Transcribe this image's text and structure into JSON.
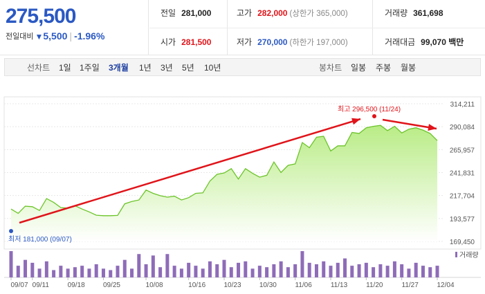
{
  "quote": {
    "price": "275,500",
    "change_label": "전일대비",
    "change_arrow": "▼",
    "change_value": "5,500",
    "change_sep": "|",
    "change_percent": "-1.96%"
  },
  "stats": {
    "prev_label": "전일",
    "prev_value": "281,000",
    "high_label": "고가",
    "high_value": "282,000",
    "upper_limit": "(상한가 365,000)",
    "volume_label": "거래량",
    "volume_value": "361,698",
    "open_label": "시가",
    "open_value": "281,500",
    "low_label": "저가",
    "low_value": "270,000",
    "lower_limit": "(하한가 197,000)",
    "amount_label": "거래대금",
    "amount_value": "99,070 백만"
  },
  "tabs": {
    "line_chart_label": "선차트",
    "periods": [
      "1일",
      "1주일",
      "3개월",
      "1년",
      "3년",
      "5년",
      "10년"
    ],
    "active_period": "3개월",
    "candle_label": "봉차트",
    "candles": [
      "일봉",
      "주봉",
      "월봉"
    ]
  },
  "colors": {
    "rise": "#e0141a",
    "fall": "#2b59c3",
    "area_line": "#6cc42a",
    "area_fill": "#c9f0a4",
    "volume_bar": "#8e6cb8"
  },
  "chart_data": {
    "type": "area",
    "ylim": [
      169450,
      314211
    ],
    "y_ticks": [
      "314,211",
      "290,084",
      "265,957",
      "241,831",
      "217,704",
      "193,577",
      "169,450"
    ],
    "y_tick_values": [
      314211,
      290084,
      265957,
      241831,
      217704,
      193577,
      169450
    ],
    "x_tick_labels": [
      "09/07",
      "09/11",
      "09/18",
      "09/25",
      "10/08",
      "10/16",
      "10/23",
      "10/30",
      "11/06",
      "11/13",
      "11/20",
      "11/27",
      "12/04"
    ],
    "x_tick_indices": [
      0,
      3,
      8,
      13,
      19,
      25,
      30,
      35,
      40,
      45,
      50,
      55,
      60
    ],
    "series": [
      {
        "values": [
          203500,
          199000,
          206500,
          206000,
          202000,
          214500,
          210500,
          205000,
          204500,
          207000,
          203500,
          200500,
          197000,
          196500,
          196500,
          196800,
          209000,
          211500,
          213000,
          223500,
          220000,
          217500,
          216000,
          217000,
          213000,
          215500,
          220000,
          220500,
          233000,
          240000,
          241500,
          246000,
          235000,
          246000,
          241000,
          237000,
          239000,
          253000,
          242000,
          249500,
          251000,
          273500,
          268000,
          279000,
          280000,
          264500,
          270000,
          270000,
          284000,
          283000,
          289000,
          290500,
          291500,
          286000,
          290500,
          283500,
          287500,
          289000,
          286500,
          283000,
          275500
        ]
      }
    ],
    "volume_label": "거래량",
    "volume": [
      18,
      8,
      12,
      10,
      6,
      11,
      5,
      8,
      6,
      7,
      8,
      6,
      9,
      6,
      5,
      8,
      12,
      6,
      16,
      9,
      15,
      7,
      16,
      8,
      6,
      10,
      8,
      6,
      11,
      9,
      12,
      7,
      10,
      11,
      6,
      8,
      7,
      9,
      11,
      7,
      9,
      18,
      10,
      9,
      11,
      8,
      10,
      13,
      8,
      9,
      10,
      7,
      9,
      8,
      11,
      9,
      6,
      10,
      8,
      7,
      8
    ],
    "high_annotation": "최고 296,500 (11/24)",
    "low_annotation": "최저 181,000 (09/07)"
  }
}
